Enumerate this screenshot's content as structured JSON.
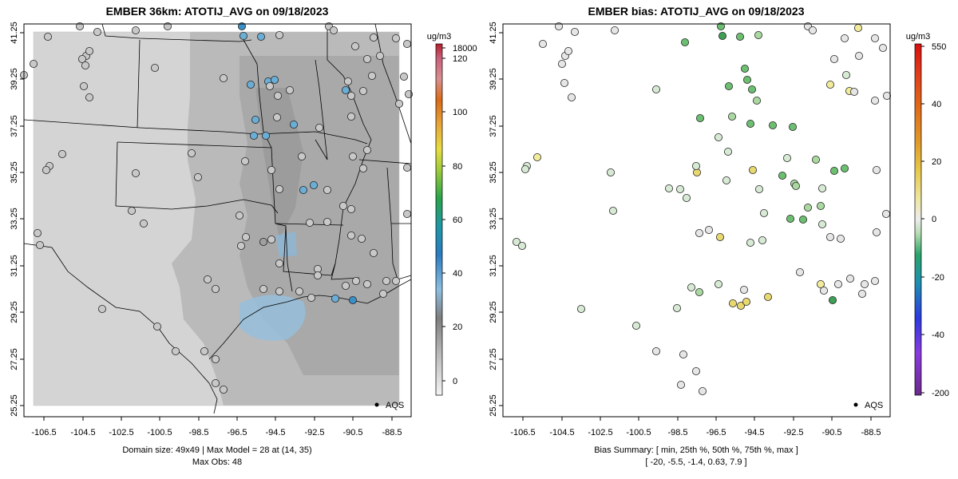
{
  "left_panel": {
    "title": "EMBER 36km: ATOTIJ_AVG on 09/18/2023",
    "units": "ug/m3",
    "colorbar_labels": [
      "18000",
      "120",
      "100",
      "80",
      "60",
      "40",
      "20",
      "0"
    ],
    "legend_label": "AQS",
    "footer_line1": "Domain size: 49x49 | Max Model = 28 at (14, 35)",
    "footer_line2": "Max Obs: 48",
    "station_colors": [
      "#c8c8c8",
      "#b4b4b4",
      "#a0a0a0",
      "#8fb9d9",
      "#6aaed6",
      "#3a8fc6"
    ]
  },
  "right_panel": {
    "title": "EMBER bias: ATOTIJ_AVG on 09/18/2023",
    "units": "ug/m3",
    "colorbar_labels": [
      "550",
      "40",
      "20",
      "0",
      "-20",
      "-40",
      "-200"
    ],
    "legend_label": "AQS",
    "footer_line1": "Bias Summary: [ min, 25th %, 50th %, 75th %, max ]",
    "footer_line2": "[ -20,   -5.5,   -1.4,   0.63,   7.9 ]",
    "station_colors": [
      "#e6e6e6",
      "#d6ead4",
      "#a9d8a0",
      "#6cbf70",
      "#3f9f55",
      "#f2ec9a",
      "#e8d870"
    ]
  },
  "axes": {
    "x_ticks": [
      "-106.5",
      "-104.5",
      "-102.5",
      "-100.5",
      "-98.5",
      "-96.5",
      "-94.5",
      "-92.5",
      "-90.5",
      "-88.5"
    ],
    "y_ticks": [
      "25.25",
      "27.25",
      "29.25",
      "31.25",
      "33.25",
      "35.25",
      "37.25",
      "39.25",
      "41.25"
    ],
    "x_range": [
      -107.5,
      -88.0
    ],
    "y_range": [
      24.7,
      41.6
    ]
  }
}
